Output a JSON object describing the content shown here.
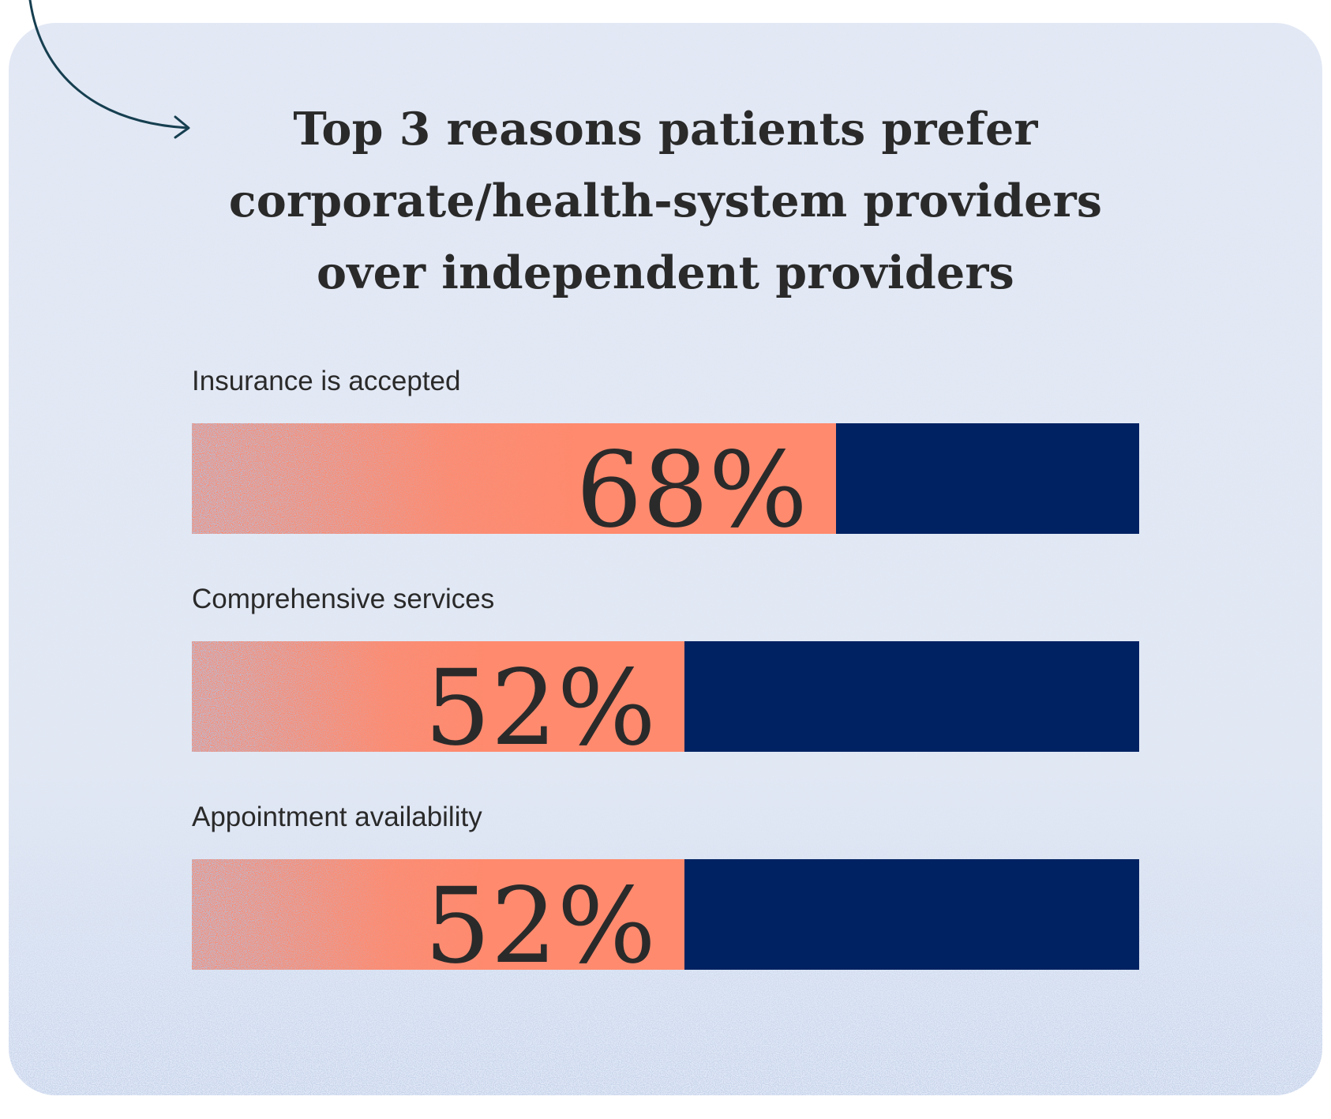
{
  "title_lines": [
    "Top 3 reasons patients prefer",
    "corporate/health-system providers",
    "over independent providers"
  ],
  "colors": {
    "accent": "#ff8a6e",
    "remainder": "#012262",
    "background": "#e4e9f4",
    "text": "#2a2a2a",
    "arrow": "#163f50"
  },
  "chart_data": {
    "type": "bar",
    "orientation": "horizontal",
    "title": "Top 3 reasons patients prefer corporate/health-system providers over independent providers",
    "categories": [
      "Insurance is accepted",
      "Comprehensive services",
      "Appointment availability"
    ],
    "values": [
      68,
      52,
      52
    ],
    "value_labels": [
      "68%",
      "52%",
      "52%"
    ],
    "xlim": [
      0,
      100
    ],
    "unit": "%",
    "grid": false,
    "legend": "none"
  }
}
